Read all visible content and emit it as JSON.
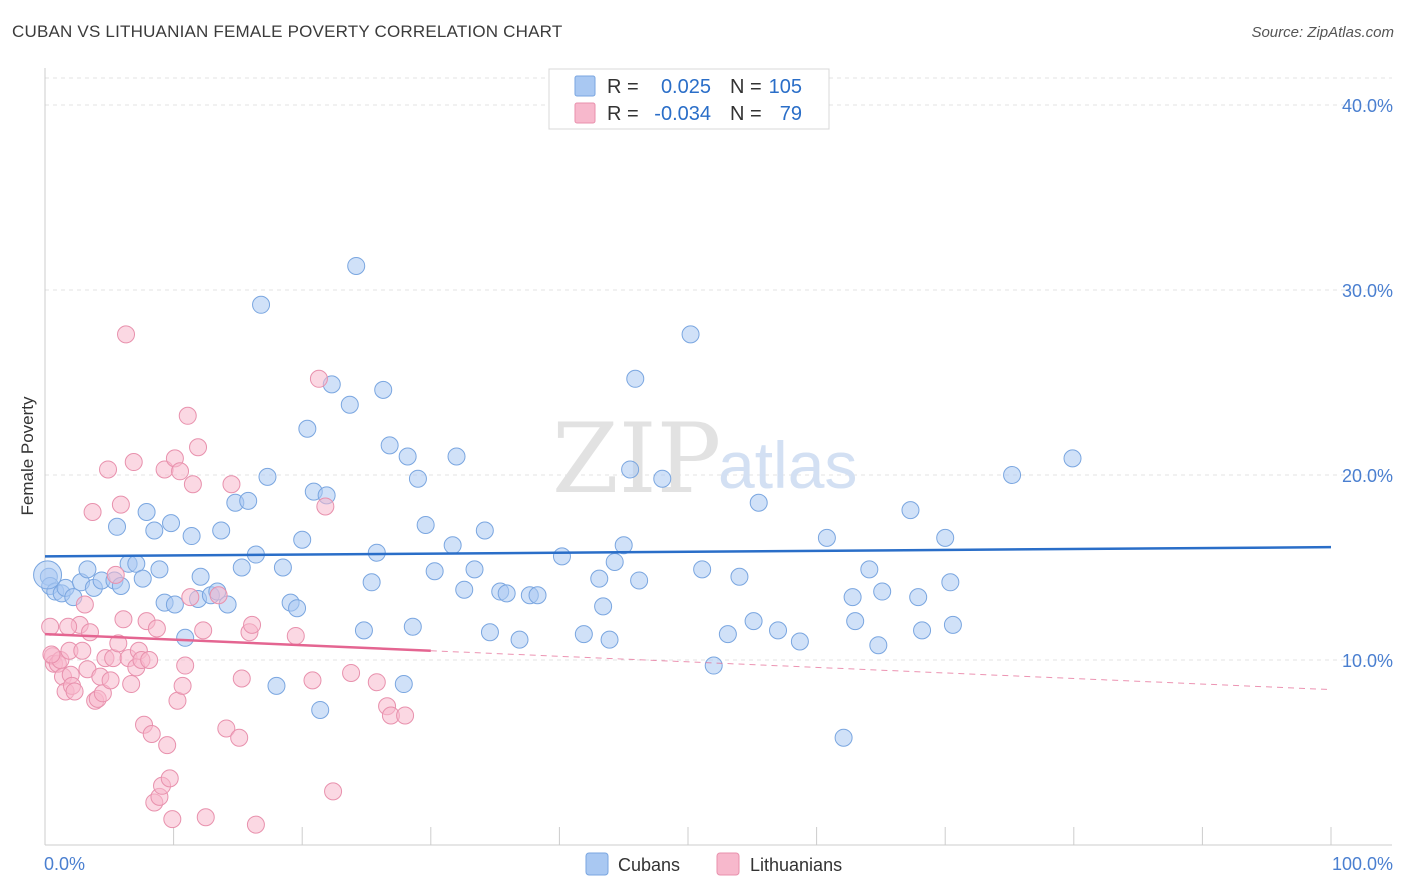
{
  "title": "CUBAN VS LITHUANIAN FEMALE POVERTY CORRELATION CHART",
  "source": "Source: ZipAtlas.com",
  "watermark": {
    "zip": "ZIP",
    "atlas": "atlas"
  },
  "colors": {
    "cubans": "#a9c8f2",
    "cubans_line": "#2a6ec8",
    "lithuanians": "#f7b8cc",
    "lithuanians_line": "#e46591",
    "label_blue": "#4a7fd0"
  },
  "legend_top": {
    "rows": [
      {
        "r_label": "R =",
        "r_value": "0.025",
        "n_label": "N =",
        "n_value": "105"
      },
      {
        "r_label": "R =",
        "r_value": "-0.034",
        "n_label": "N =",
        "n_value": "79"
      }
    ]
  },
  "chart_data": {
    "type": "scatter",
    "title": "CUBAN VS LITHUANIAN FEMALE POVERTY CORRELATION CHART",
    "xlabel": "",
    "ylabel": "Female Poverty",
    "xlim": [
      0,
      100
    ],
    "ylim": [
      0,
      42
    ],
    "x_tick_labels": [
      "0.0%",
      "100.0%"
    ],
    "y_ticks": [
      10,
      20,
      30,
      40
    ],
    "y_tick_labels": [
      "10.0%",
      "20.0%",
      "30.0%",
      "40.0%"
    ],
    "grid": true,
    "legend_position": "top-center",
    "series": [
      {
        "name": "Cubans",
        "r": 0.025,
        "n": 105,
        "trend": {
          "x": [
            0,
            100
          ],
          "y": [
            15.6,
            16.1
          ],
          "dashed_from": null
        },
        "points": [
          [
            0.3,
            14.5
          ],
          [
            0.4,
            14.0
          ],
          [
            0.8,
            13.7
          ],
          [
            1.3,
            13.6
          ],
          [
            1.6,
            13.9
          ],
          [
            2.2,
            13.4
          ],
          [
            2.8,
            14.2
          ],
          [
            3.3,
            14.9
          ],
          [
            3.8,
            13.9
          ],
          [
            4.4,
            14.3
          ],
          [
            5.4,
            14.3
          ],
          [
            5.6,
            17.2
          ],
          [
            5.9,
            14.0
          ],
          [
            6.5,
            15.2
          ],
          [
            7.1,
            15.2
          ],
          [
            7.6,
            14.4
          ],
          [
            7.9,
            18.0
          ],
          [
            8.5,
            17.0
          ],
          [
            8.9,
            14.9
          ],
          [
            9.3,
            13.1
          ],
          [
            9.8,
            17.4
          ],
          [
            10.1,
            13.0
          ],
          [
            10.9,
            11.2
          ],
          [
            11.4,
            16.7
          ],
          [
            11.9,
            13.3
          ],
          [
            12.1,
            14.5
          ],
          [
            12.9,
            13.5
          ],
          [
            13.4,
            13.7
          ],
          [
            13.7,
            17.0
          ],
          [
            14.2,
            13.0
          ],
          [
            14.8,
            18.5
          ],
          [
            15.3,
            15.0
          ],
          [
            15.8,
            18.6
          ],
          [
            16.4,
            15.7
          ],
          [
            16.8,
            29.2
          ],
          [
            17.3,
            19.9
          ],
          [
            18.0,
            8.6
          ],
          [
            18.5,
            15.0
          ],
          [
            19.1,
            13.1
          ],
          [
            19.6,
            12.8
          ],
          [
            20.0,
            16.5
          ],
          [
            20.4,
            22.5
          ],
          [
            20.9,
            19.1
          ],
          [
            21.4,
            7.3
          ],
          [
            21.9,
            18.9
          ],
          [
            22.3,
            24.9
          ],
          [
            23.7,
            23.8
          ],
          [
            24.2,
            31.3
          ],
          [
            24.8,
            11.6
          ],
          [
            25.4,
            14.2
          ],
          [
            25.8,
            15.8
          ],
          [
            26.3,
            24.6
          ],
          [
            26.8,
            21.6
          ],
          [
            27.9,
            8.7
          ],
          [
            28.2,
            21.0
          ],
          [
            28.6,
            11.8
          ],
          [
            29.0,
            19.8
          ],
          [
            29.6,
            17.3
          ],
          [
            30.3,
            14.8
          ],
          [
            31.7,
            16.2
          ],
          [
            32.0,
            21.0
          ],
          [
            32.6,
            13.8
          ],
          [
            33.4,
            14.9
          ],
          [
            34.2,
            17.0
          ],
          [
            34.6,
            11.5
          ],
          [
            35.4,
            13.7
          ],
          [
            35.9,
            13.6
          ],
          [
            36.9,
            11.1
          ],
          [
            37.7,
            13.5
          ],
          [
            38.3,
            13.5
          ],
          [
            40.2,
            15.6
          ],
          [
            41.9,
            11.4
          ],
          [
            43.1,
            14.4
          ],
          [
            43.4,
            12.9
          ],
          [
            43.9,
            11.1
          ],
          [
            44.3,
            15.3
          ],
          [
            45.0,
            16.2
          ],
          [
            45.5,
            20.3
          ],
          [
            45.9,
            25.2
          ],
          [
            46.2,
            14.3
          ],
          [
            48.0,
            19.8
          ],
          [
            50.2,
            27.6
          ],
          [
            51.1,
            14.9
          ],
          [
            52.0,
            9.7
          ],
          [
            53.1,
            11.4
          ],
          [
            54.0,
            14.5
          ],
          [
            55.1,
            12.1
          ],
          [
            55.5,
            18.5
          ],
          [
            57.0,
            11.6
          ],
          [
            58.7,
            11.0
          ],
          [
            60.8,
            16.6
          ],
          [
            62.1,
            5.8
          ],
          [
            62.8,
            13.4
          ],
          [
            63.0,
            12.1
          ],
          [
            64.1,
            14.9
          ],
          [
            64.8,
            10.8
          ],
          [
            65.1,
            13.7
          ],
          [
            67.3,
            18.1
          ],
          [
            67.9,
            13.4
          ],
          [
            68.2,
            11.6
          ],
          [
            70.0,
            16.6
          ],
          [
            70.4,
            14.2
          ],
          [
            70.6,
            11.9
          ],
          [
            75.2,
            20.0
          ],
          [
            79.9,
            20.9
          ]
        ]
      },
      {
        "name": "Lithuanians",
        "r": -0.034,
        "n": 79,
        "trend": {
          "x": [
            0,
            100
          ],
          "y": [
            11.4,
            8.4
          ],
          "dashed_from": 30
        },
        "points": [
          [
            0.4,
            11.8
          ],
          [
            0.6,
            10.2
          ],
          [
            0.7,
            9.8
          ],
          [
            1.0,
            9.8
          ],
          [
            1.2,
            10.0
          ],
          [
            1.4,
            9.1
          ],
          [
            1.6,
            8.3
          ],
          [
            1.9,
            10.5
          ],
          [
            2.0,
            9.2
          ],
          [
            2.1,
            8.6
          ],
          [
            2.3,
            8.3
          ],
          [
            2.7,
            11.9
          ],
          [
            2.9,
            10.5
          ],
          [
            3.1,
            13.0
          ],
          [
            3.3,
            9.5
          ],
          [
            3.5,
            11.5
          ],
          [
            3.7,
            18.0
          ],
          [
            3.9,
            7.8
          ],
          [
            4.1,
            7.9
          ],
          [
            4.3,
            9.1
          ],
          [
            4.5,
            8.2
          ],
          [
            4.7,
            10.1
          ],
          [
            4.9,
            20.3
          ],
          [
            5.1,
            8.9
          ],
          [
            5.3,
            10.1
          ],
          [
            5.5,
            14.6
          ],
          [
            5.7,
            10.9
          ],
          [
            5.9,
            18.4
          ],
          [
            6.1,
            12.2
          ],
          [
            6.3,
            27.6
          ],
          [
            6.5,
            10.1
          ],
          [
            6.7,
            8.7
          ],
          [
            6.9,
            20.7
          ],
          [
            7.1,
            9.6
          ],
          [
            7.3,
            10.5
          ],
          [
            7.5,
            10.0
          ],
          [
            7.7,
            6.5
          ],
          [
            7.9,
            12.1
          ],
          [
            8.1,
            10.0
          ],
          [
            8.3,
            6.0
          ],
          [
            8.5,
            2.3
          ],
          [
            8.7,
            11.7
          ],
          [
            8.9,
            2.6
          ],
          [
            9.1,
            3.2
          ],
          [
            9.3,
            20.3
          ],
          [
            9.5,
            5.4
          ],
          [
            9.7,
            3.6
          ],
          [
            9.9,
            1.4
          ],
          [
            10.1,
            20.9
          ],
          [
            10.3,
            7.8
          ],
          [
            10.5,
            20.2
          ],
          [
            10.7,
            8.6
          ],
          [
            10.9,
            9.7
          ],
          [
            11.1,
            23.2
          ],
          [
            11.3,
            13.4
          ],
          [
            11.5,
            19.5
          ],
          [
            11.9,
            21.5
          ],
          [
            12.3,
            11.6
          ],
          [
            12.5,
            1.5
          ],
          [
            13.5,
            13.5
          ],
          [
            14.1,
            6.3
          ],
          [
            14.5,
            19.5
          ],
          [
            15.1,
            5.8
          ],
          [
            15.3,
            9.0
          ],
          [
            15.9,
            11.5
          ],
          [
            16.1,
            11.9
          ],
          [
            16.4,
            1.1
          ],
          [
            19.5,
            11.3
          ],
          [
            20.8,
            8.9
          ],
          [
            21.3,
            25.2
          ],
          [
            21.8,
            18.3
          ],
          [
            22.4,
            2.9
          ],
          [
            23.8,
            9.3
          ],
          [
            25.8,
            8.8
          ],
          [
            26.6,
            7.5
          ],
          [
            26.9,
            7.0
          ],
          [
            28.0,
            7.0
          ],
          [
            0.5,
            10.3
          ],
          [
            1.8,
            11.8
          ]
        ]
      }
    ]
  },
  "bottom_legend": [
    {
      "label": "Cubans"
    },
    {
      "label": "Lithuanians"
    }
  ]
}
